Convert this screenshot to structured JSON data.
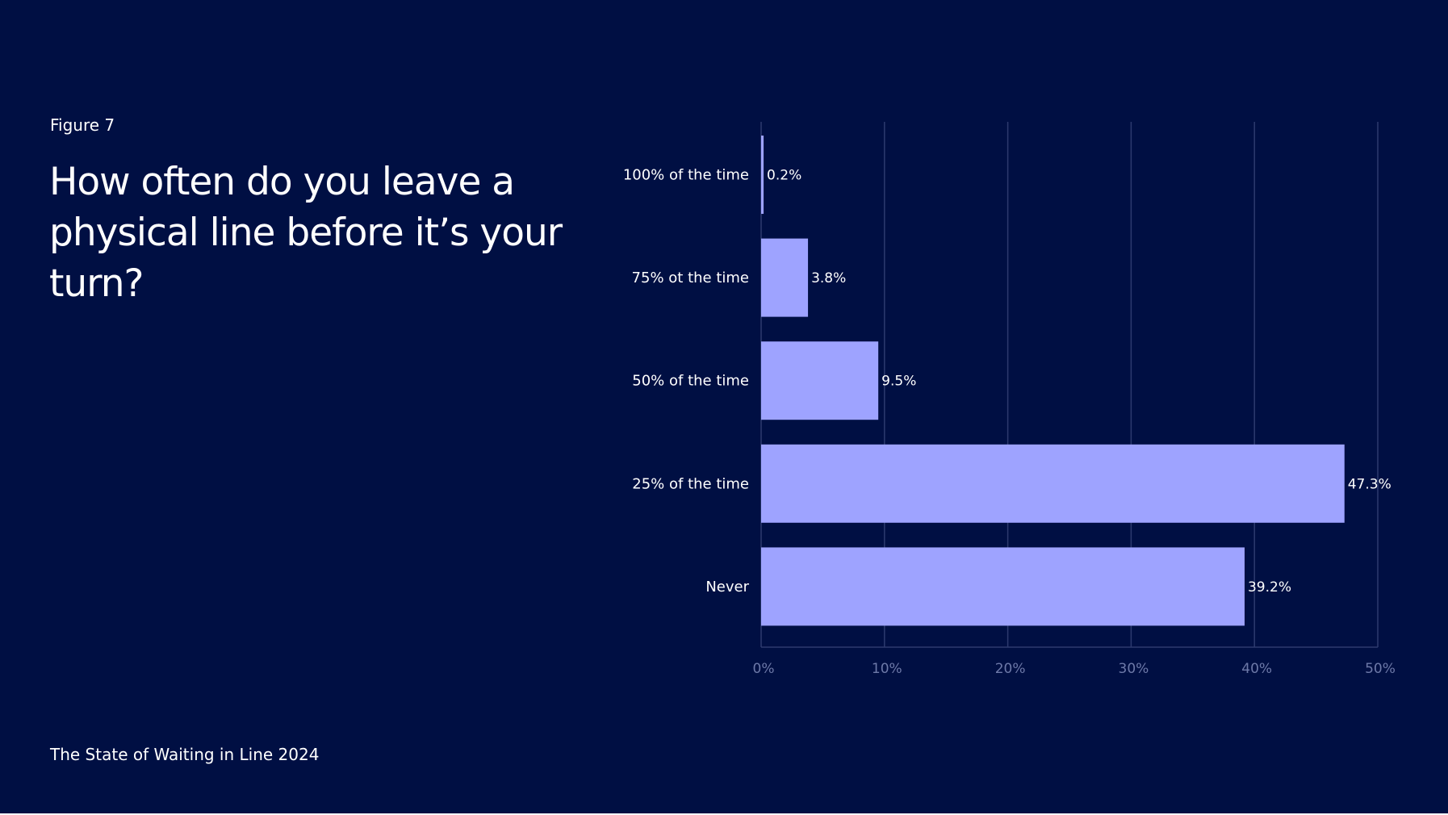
{
  "figure_label": "Figure 7",
  "headline": "How often do you leave a physical line before it’s your turn?",
  "footer": "The State of Waiting in Line 2024",
  "colors": {
    "background": "#000f43",
    "bar": "#9ea3ff",
    "grid": "#2d3a6e",
    "tick_text": "#6d79a8",
    "text": "#ffffff"
  },
  "chart_data": {
    "type": "bar",
    "orientation": "horizontal",
    "categories": [
      "100% of the time",
      "75% ot the time",
      "50% of the time",
      "25% of the time",
      "Never"
    ],
    "values": [
      0.2,
      3.8,
      9.5,
      47.3,
      39.2
    ],
    "value_labels": [
      "0.2%",
      "3.8%",
      "9.5%",
      "47.3%",
      "39.2%"
    ],
    "xlim": [
      0,
      50
    ],
    "x_ticks": [
      0,
      10,
      20,
      30,
      40,
      50
    ],
    "x_tick_labels": [
      "0%",
      "10%",
      "20%",
      "30%",
      "40%",
      "50%"
    ],
    "grid": true
  }
}
